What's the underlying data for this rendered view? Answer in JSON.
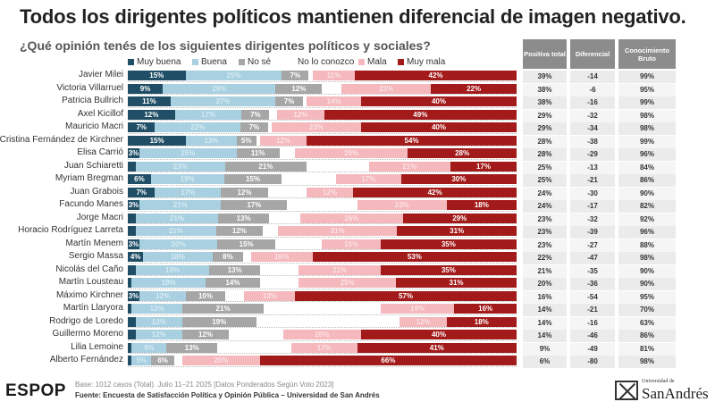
{
  "title": "Todos los dirigentes políticos mantienen diferencial de imagen negativo.",
  "subtitle": "¿Qué opinión tenés de los siguientes dirigentes políticos y sociales?",
  "chart_data": {
    "type": "bar",
    "orientation": "horizontal-stacked-100",
    "legend_position": "top",
    "series_names": [
      "Muy buena",
      "Buena",
      "No sé",
      "No lo conozco",
      "Mala",
      "Muy mala"
    ],
    "colors": [
      "#1f4e66",
      "#a8d0e0",
      "#a6a6a6",
      "#ffffff",
      "#f4b8bd",
      "#a31a1a"
    ],
    "categories": [
      "Javier Milei",
      "Victoria Villarruel",
      "Patricia Bullrich",
      "Axel Kicillof",
      "Mauricio Macri",
      "Cristina Fernández de Kirchner",
      "Elisa Carrió",
      "Juan Schiaretti",
      "Myriam Bregman",
      "Juan Grabois",
      "Facundo Manes",
      "Jorge Macri",
      "Horacio Rodríguez Larreta",
      "Martín Menem",
      "Sergio Massa",
      "Nicolás del Caño",
      "Martín Lousteau",
      "Máximo Kirchner",
      "Martín Llaryora",
      "Rodrigo de Loredo",
      "Guillermo Moreno",
      "Lilia Lemoine",
      "Alberto Fernández"
    ],
    "series": [
      {
        "name": "Muy buena",
        "values": [
          15,
          9,
          11,
          12,
          7,
          15,
          3,
          2,
          6,
          7,
          3,
          2,
          2,
          3,
          4,
          2,
          1,
          3,
          1,
          2,
          2,
          1,
          1
        ]
      },
      {
        "name": "Buena",
        "values": [
          25,
          29,
          27,
          17,
          22,
          13,
          25,
          23,
          19,
          17,
          21,
          21,
          21,
          20,
          18,
          19,
          19,
          12,
          13,
          12,
          12,
          9,
          5
        ]
      },
      {
        "name": "No sé",
        "values": [
          7,
          12,
          7,
          7,
          7,
          5,
          11,
          21,
          15,
          12,
          17,
          13,
          12,
          15,
          8,
          13,
          14,
          10,
          21,
          19,
          12,
          13,
          6
        ]
      },
      {
        "name": "No lo conozco",
        "values": [
          1,
          5,
          1,
          2,
          1,
          1,
          4,
          16,
          14,
          10,
          18,
          8,
          4,
          12,
          2,
          10,
          10,
          5,
          30,
          37,
          14,
          19,
          2
        ]
      },
      {
        "name": "Mala",
        "values": [
          11,
          23,
          14,
          12,
          23,
          12,
          29,
          21,
          17,
          12,
          23,
          26,
          31,
          15,
          16,
          21,
          25,
          13,
          19,
          12,
          20,
          17,
          20
        ]
      },
      {
        "name": "Muy mala",
        "values": [
          42,
          22,
          40,
          49,
          40,
          54,
          28,
          17,
          30,
          42,
          18,
          29,
          31,
          35,
          53,
          35,
          31,
          57,
          16,
          18,
          40,
          41,
          66
        ]
      }
    ]
  },
  "table": {
    "headers": [
      "Positiva total",
      "Diferencial",
      "Conocimiento Bruto"
    ],
    "rows": [
      [
        "39%",
        "-14",
        "99%"
      ],
      [
        "38%",
        "-6",
        "95%"
      ],
      [
        "38%",
        "-16",
        "99%"
      ],
      [
        "29%",
        "-32",
        "98%"
      ],
      [
        "29%",
        "-34",
        "98%"
      ],
      [
        "28%",
        "-38",
        "99%"
      ],
      [
        "28%",
        "-29",
        "96%"
      ],
      [
        "25%",
        "-13",
        "84%"
      ],
      [
        "25%",
        "-21",
        "86%"
      ],
      [
        "24%",
        "-30",
        "90%"
      ],
      [
        "24%",
        "-17",
        "82%"
      ],
      [
        "23%",
        "-32",
        "92%"
      ],
      [
        "23%",
        "-39",
        "96%"
      ],
      [
        "23%",
        "-27",
        "88%"
      ],
      [
        "22%",
        "-47",
        "98%"
      ],
      [
        "21%",
        "-35",
        "90%"
      ],
      [
        "20%",
        "-36",
        "90%"
      ],
      [
        "16%",
        "-54",
        "95%"
      ],
      [
        "14%",
        "-21",
        "70%"
      ],
      [
        "14%",
        "-16",
        "63%"
      ],
      [
        "14%",
        "-46",
        "86%"
      ],
      [
        "9%",
        "-49",
        "81%"
      ],
      [
        "6%",
        "-80",
        "98%"
      ]
    ]
  },
  "footer": {
    "logo": "ESPOP",
    "base": "Base: 1012 casos (Total). Julio 11–21 2025 [Datos Ponderados Según Voto 2023]",
    "source": "Fuente: Encuesta de Satisfacción Política y Opinión Pública – Universidad de San Andrés",
    "university_small": "Universidad de",
    "university_big": "SanAndrés"
  }
}
